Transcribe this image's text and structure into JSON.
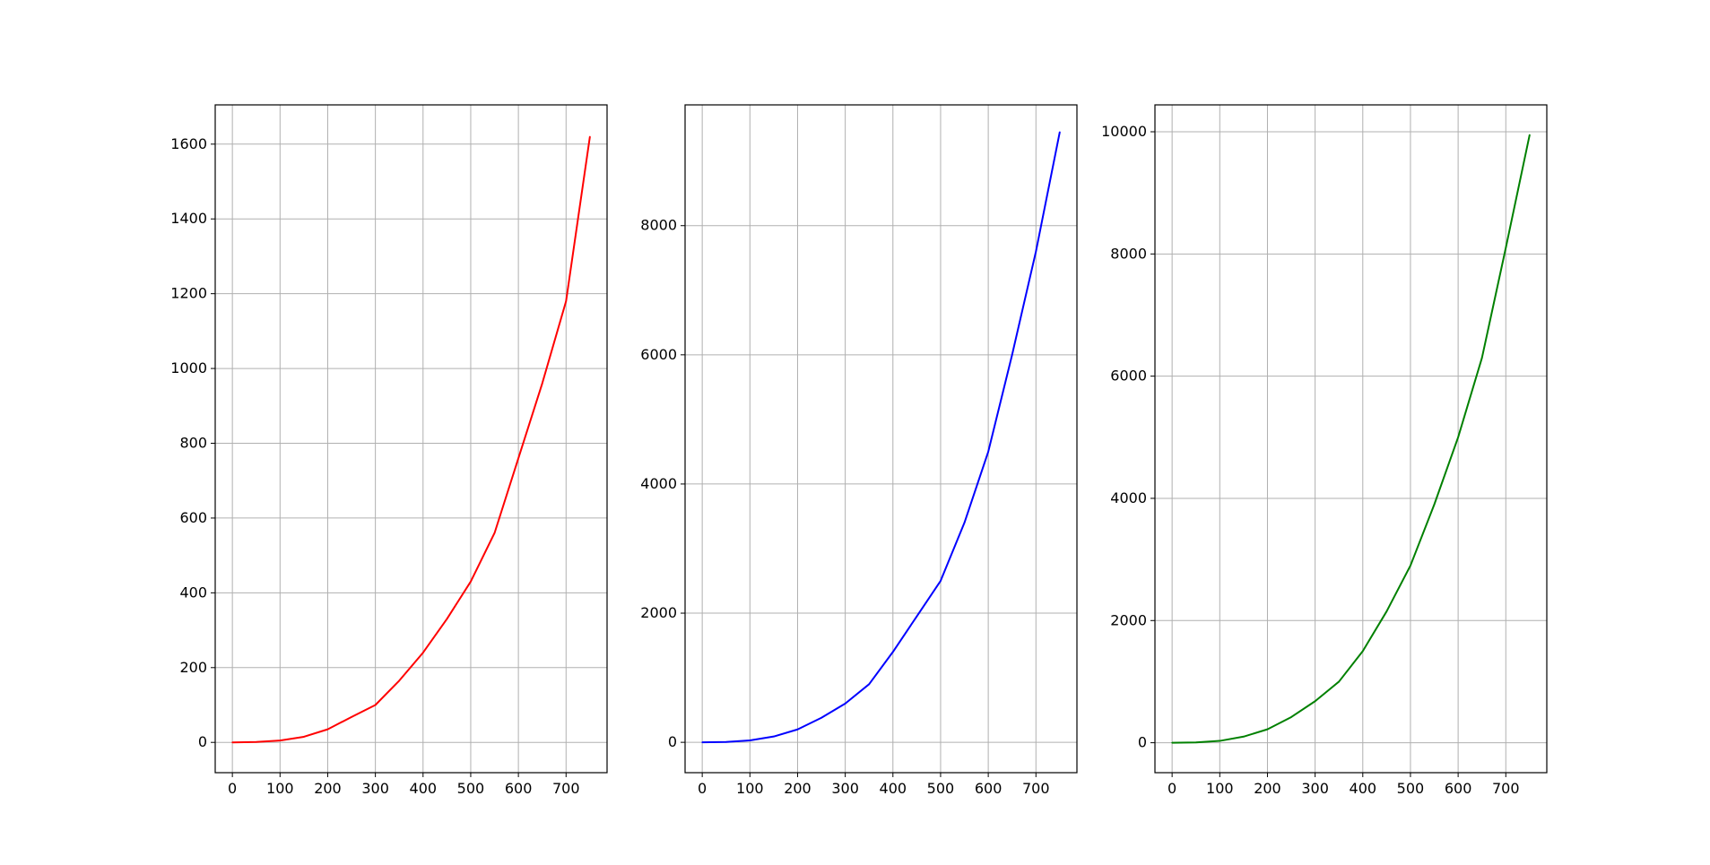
{
  "chart_data": [
    {
      "type": "line",
      "title": "",
      "xlabel": "",
      "ylabel": "",
      "grid": true,
      "color": "#ff0000",
      "xlim": [
        -36,
        786
      ],
      "ylim": [
        -81,
        1705
      ],
      "xticks": [
        0,
        100,
        200,
        300,
        400,
        500,
        600,
        700
      ],
      "yticks": [
        0,
        200,
        400,
        600,
        800,
        1000,
        1200,
        1400,
        1600
      ],
      "x": [
        0,
        50,
        100,
        150,
        200,
        250,
        300,
        350,
        400,
        450,
        500,
        550,
        600,
        650,
        700,
        750
      ],
      "y": [
        0,
        1,
        5,
        15,
        35,
        68,
        100,
        165,
        240,
        330,
        430,
        560,
        760,
        960,
        1180,
        1620
      ]
    },
    {
      "type": "line",
      "title": "",
      "xlabel": "",
      "ylabel": "",
      "grid": true,
      "color": "#0000ff",
      "xlim": [
        -36,
        786
      ],
      "ylim": [
        -470,
        9870
      ],
      "xticks": [
        0,
        100,
        200,
        300,
        400,
        500,
        600,
        700
      ],
      "yticks": [
        0,
        2000,
        4000,
        6000,
        8000
      ],
      "x": [
        0,
        50,
        100,
        150,
        200,
        250,
        300,
        350,
        400,
        450,
        500,
        550,
        600,
        650,
        700,
        750
      ],
      "y": [
        0,
        5,
        30,
        90,
        200,
        380,
        600,
        900,
        1400,
        1950,
        2500,
        3400,
        4500,
        6000,
        7600,
        9450
      ]
    },
    {
      "type": "line",
      "title": "",
      "xlabel": "",
      "ylabel": "",
      "grid": true,
      "color": "#008000",
      "xlim": [
        -36,
        786
      ],
      "ylim": [
        -490,
        10440
      ],
      "xticks": [
        0,
        100,
        200,
        300,
        400,
        500,
        600,
        700
      ],
      "yticks": [
        0,
        2000,
        4000,
        6000,
        8000,
        10000
      ],
      "x": [
        0,
        50,
        100,
        150,
        200,
        250,
        300,
        350,
        400,
        450,
        500,
        550,
        600,
        650,
        700,
        750
      ],
      "y": [
        0,
        5,
        30,
        100,
        220,
        420,
        680,
        1000,
        1500,
        2150,
        2900,
        3900,
        5000,
        6300,
        8100,
        9950
      ]
    }
  ]
}
